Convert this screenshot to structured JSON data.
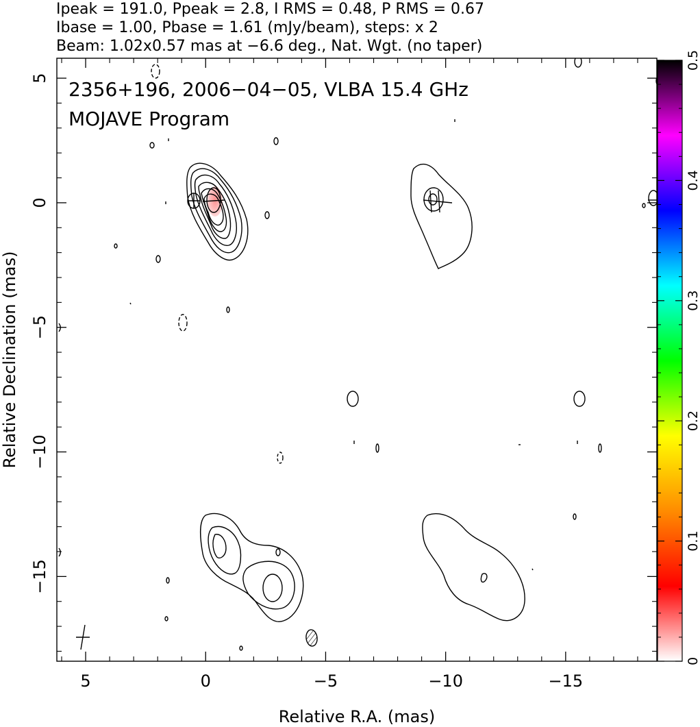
{
  "header": {
    "line1": "Ipeak = 191.0, Ppeak = 2.8, I RMS = 0.48, P RMS = 0.67",
    "line2": "Ibase = 1.00, Pbase = 1.61 (mJy/beam), steps: x 2",
    "line3": "Beam: 1.02x0.57 mas at −6.6 deg., Nat. Wgt. (no taper)"
  },
  "plot": {
    "title_line1": "2356+196, 2006−04−05, VLBA 15.4 GHz",
    "title_line2": "MOJAVE Program"
  },
  "chart_data": {
    "type": "contour",
    "xlabel": "Relative R.A. (mas)",
    "ylabel": "Relative Declination (mas)",
    "xlim": [
      6.2,
      -18.8
    ],
    "ylim": [
      -18.4,
      5.8
    ],
    "xticks": [
      {
        "v": 5,
        "label": "5"
      },
      {
        "v": 0,
        "label": "0"
      },
      {
        "v": -5,
        "label": "−5"
      },
      {
        "v": -10,
        "label": "−10"
      },
      {
        "v": -15,
        "label": "−15"
      }
    ],
    "yticks": [
      {
        "v": 5,
        "label": "5"
      },
      {
        "v": 0,
        "label": "0"
      },
      {
        "v": -5,
        "label": "−5"
      },
      {
        "v": -10,
        "label": "−10"
      },
      {
        "v": -15,
        "label": "−15"
      }
    ],
    "colorbar": {
      "range": [
        0,
        0.5
      ],
      "ticks": [
        {
          "v": 0,
          "label": "0"
        },
        {
          "v": 0.1,
          "label": "0.1"
        },
        {
          "v": 0.2,
          "label": "0.2"
        },
        {
          "v": 0.3,
          "label": "0.3"
        },
        {
          "v": 0.4,
          "label": "0.4"
        },
        {
          "v": 0.5,
          "label": "0.5"
        }
      ],
      "colors": [
        "#ffffff",
        "#ff0000",
        "#ff8c00",
        "#ffff00",
        "#00ff00",
        "#00ffff",
        "#0000ff",
        "#ff00ff",
        "#000000"
      ]
    },
    "peak_position": [
      -0.2,
      0.0
    ],
    "beam": {
      "major": 1.02,
      "minor": 0.57,
      "pa_deg": -6.6,
      "position": [
        -4.1,
        -17.8
      ]
    },
    "contour_steps": "x 2"
  }
}
